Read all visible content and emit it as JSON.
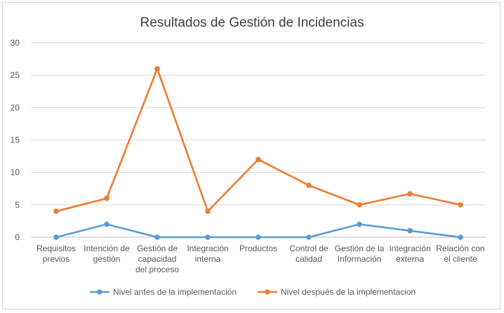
{
  "chart_data": {
    "type": "line",
    "title": "Resultados de Gestión de Incidencias",
    "categories": [
      [
        "Requisitos",
        "previos"
      ],
      [
        "Intención de",
        "gestión"
      ],
      [
        "Gestión de",
        "capacidad",
        "del proceso"
      ],
      [
        "Integración",
        "interna"
      ],
      [
        "Productos"
      ],
      [
        "Control de",
        "calidad"
      ],
      [
        "Gestión de la",
        "Información"
      ],
      [
        "Integración",
        "externa"
      ],
      [
        "Relación con",
        "el cliente"
      ]
    ],
    "series": [
      {
        "name": "Nivel antes de la implementación",
        "color": "#5b9bd5",
        "values": [
          0,
          2,
          0,
          0,
          0,
          0,
          2,
          1,
          0
        ]
      },
      {
        "name": "Nivel después de la implementacion",
        "color": "#ed7d31",
        "values": [
          4,
          6,
          26,
          4,
          12,
          8,
          5,
          6.7,
          5
        ]
      }
    ],
    "ylim": [
      0,
      30
    ],
    "yticks": [
      0,
      5,
      10,
      15,
      20,
      25,
      30
    ],
    "grid": true,
    "legend": "bottom"
  }
}
